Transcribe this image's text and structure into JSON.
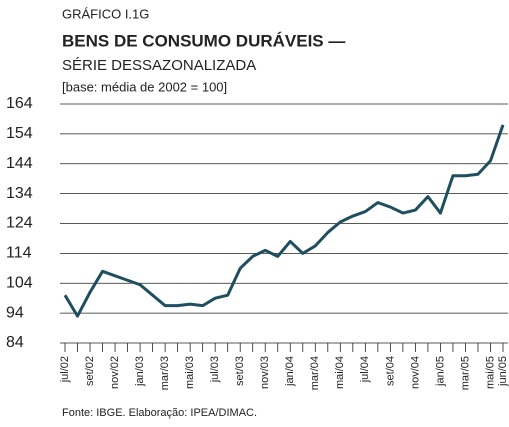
{
  "chart_data": {
    "type": "line",
    "kicker": "GRÁFICO I.1G",
    "title": "BENS DE CONSUMO DURÁVEIS —",
    "subtitle": "SÉRIE DESSAZONALIZADA",
    "note": "[base: média de 2002 = 100]",
    "source": "Fonte: IBGE. Elaboração: IPEA/DIMAC.",
    "categories": [
      "jul/02",
      null,
      "set/02",
      null,
      "nov/02",
      null,
      "jan/03",
      null,
      "mar/03",
      null,
      "mai/03",
      null,
      "jul/03",
      null,
      "set/03",
      null,
      "nov/03",
      null,
      "jan/04",
      null,
      "mar/04",
      null,
      "mai/04",
      null,
      "jul/04",
      null,
      "set/04",
      null,
      "nov/04",
      null,
      "jan/05",
      null,
      "mar/05",
      null,
      "mai/05",
      "jun/05"
    ],
    "series": [
      {
        "name": "Bens de consumo duráveis",
        "color": "#1f4e5f",
        "values": [
          100,
          93,
          101,
          108,
          106.5,
          105,
          103.5,
          100,
          96.5,
          96.5,
          97,
          96.5,
          99,
          100,
          109,
          113,
          115,
          113,
          118,
          114,
          116.5,
          121,
          124.5,
          126.5,
          128,
          131,
          129.5,
          127.5,
          128.5,
          133,
          127.5,
          140,
          140,
          140.5,
          145,
          157
        ]
      }
    ],
    "ylim": [
      84,
      164
    ],
    "yticks": [
      84,
      94,
      104,
      114,
      124,
      134,
      144,
      154,
      164
    ],
    "grid": true
  }
}
